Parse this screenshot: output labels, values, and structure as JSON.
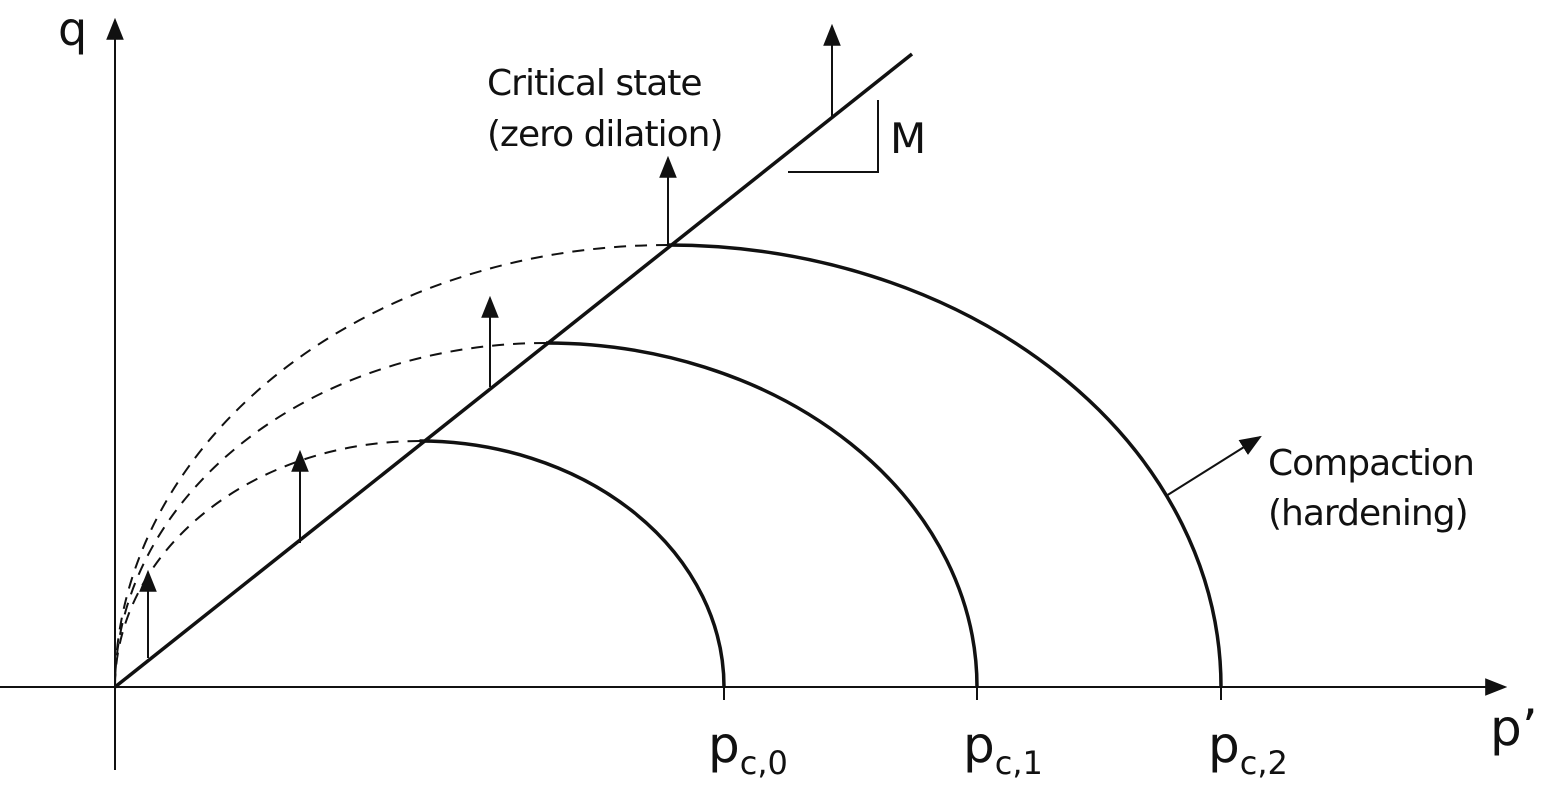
{
  "axes": {
    "y_label": "q",
    "x_label": "p’"
  },
  "critical_state": {
    "line1": "Critical state",
    "line2": "(zero dilation)",
    "slope": "M"
  },
  "compaction": {
    "line1": "Compaction",
    "line2": "(hardening)"
  },
  "pressures": [
    {
      "main": "p",
      "sub": "c,0"
    },
    {
      "main": "p",
      "sub": "c,1"
    },
    {
      "main": "p",
      "sub": "c,2"
    }
  ]
}
